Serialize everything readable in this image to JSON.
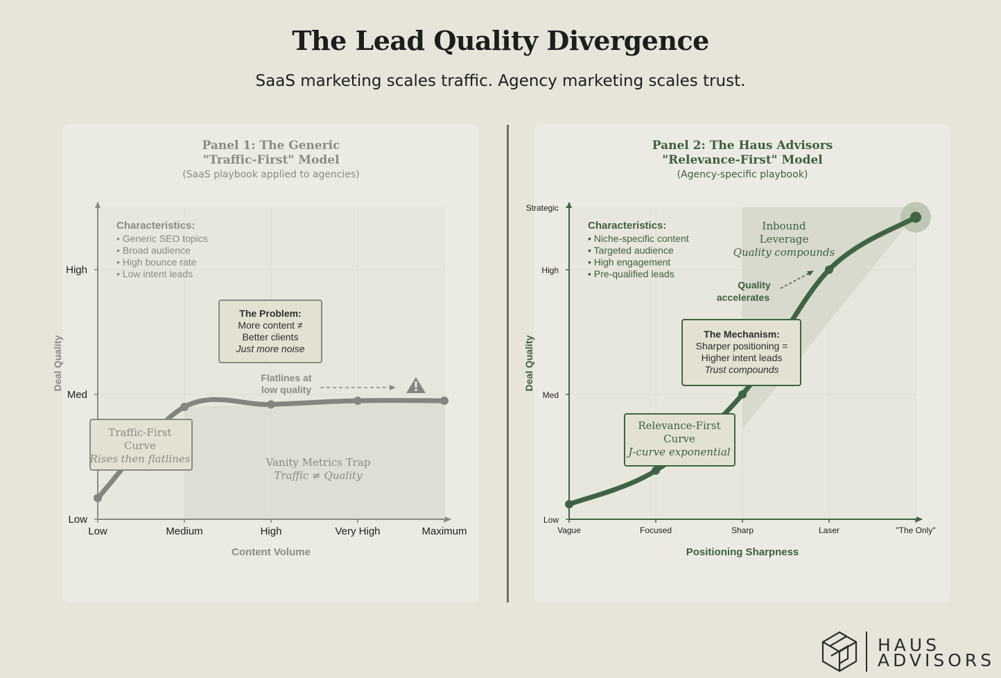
{
  "header": {
    "title": "The Lead Quality Divergence",
    "subtitle": "SaaS marketing scales traffic. Agency marketing scales trust."
  },
  "brand": {
    "line1": "HAUS",
    "line2": "ADVISORS"
  },
  "colors": {
    "background": "#e7e5da",
    "panel": "#ecebe3",
    "gray_curve": "#858580",
    "gray_text": "#8a8a84",
    "green": "#3e6444",
    "green_text": "#3d5e40",
    "box_fill": "#e3e2d2"
  },
  "chart_data": [
    {
      "type": "line",
      "panel_title_line1": "Panel 1: The Generic",
      "panel_title_line2": "\"Traffic-First\" Model",
      "panel_subtitle": "(SaaS playbook applied to agencies)",
      "xlabel": "Content Volume",
      "ylabel": "Deal Quality",
      "x_ticks": [
        "Low",
        "Medium",
        "High",
        "Very High",
        "Maximum"
      ],
      "y_ticks": [
        "Low",
        "Med",
        "High"
      ],
      "y_range": [
        0,
        2.5
      ],
      "grid": true,
      "series": [
        {
          "name": "Traffic-First Curve",
          "x": [
            0,
            1,
            2,
            3,
            4
          ],
          "y": [
            0.17,
            0.9,
            0.92,
            0.95,
            0.95
          ]
        }
      ],
      "characteristics": {
        "heading": "Characteristics:",
        "items": [
          "Generic SEO topics",
          "Broad audience",
          "High bounce rate",
          "Low intent leads"
        ]
      },
      "problem_box": {
        "heading": "The Problem:",
        "line1": "More content ≠",
        "line2": "Better clients",
        "line3": "Just more noise"
      },
      "curve_label": {
        "line1": "Traffic-First",
        "line2": "Curve",
        "line3": "Rises then flatlines"
      },
      "flatline_note": {
        "line1": "Flatlines at",
        "line2": "low quality"
      },
      "trap_label": {
        "line1": "Vanity Metrics Trap",
        "line2": "Traffic ≠ Quality"
      },
      "warning_icon": "warning-triangle-icon"
    },
    {
      "type": "line",
      "panel_title_line1": "Panel 2: The Haus Advisors",
      "panel_title_line2": "\"Relevance-First\" Model",
      "panel_subtitle": "(Agency-specific playbook)",
      "xlabel": "Positioning Sharpness",
      "ylabel": "Deal Quality",
      "x_ticks": [
        "Vague",
        "Focused",
        "Sharp",
        "Laser",
        "\"The Only\""
      ],
      "y_ticks": [
        "Low",
        "Med",
        "High",
        "Strategic"
      ],
      "y_range": [
        0,
        2.5
      ],
      "grid": true,
      "series": [
        {
          "name": "Relevance-First Curve",
          "x": [
            0,
            1,
            2,
            3,
            4
          ],
          "y": [
            0.12,
            0.39,
            1.0,
            2.0,
            2.42
          ]
        }
      ],
      "characteristics": {
        "heading": "Characteristics:",
        "items": [
          "Niche-specific content",
          "Targeted audience",
          "High engagement",
          "Pre-qualified leads"
        ]
      },
      "mechanism_box": {
        "heading": "The Mechanism:",
        "line1": "Sharper positioning =",
        "line2": "Higher intent leads",
        "line3": "Trust compounds"
      },
      "curve_label": {
        "line1": "Relevance-First",
        "line2": "Curve",
        "line3": "J-curve exponential"
      },
      "accel_note": {
        "line1": "Quality",
        "line2": "accelerates"
      },
      "inbound_label": {
        "line1": "Inbound",
        "line2": "Leverage",
        "line3": "Quality compounds"
      }
    }
  ]
}
